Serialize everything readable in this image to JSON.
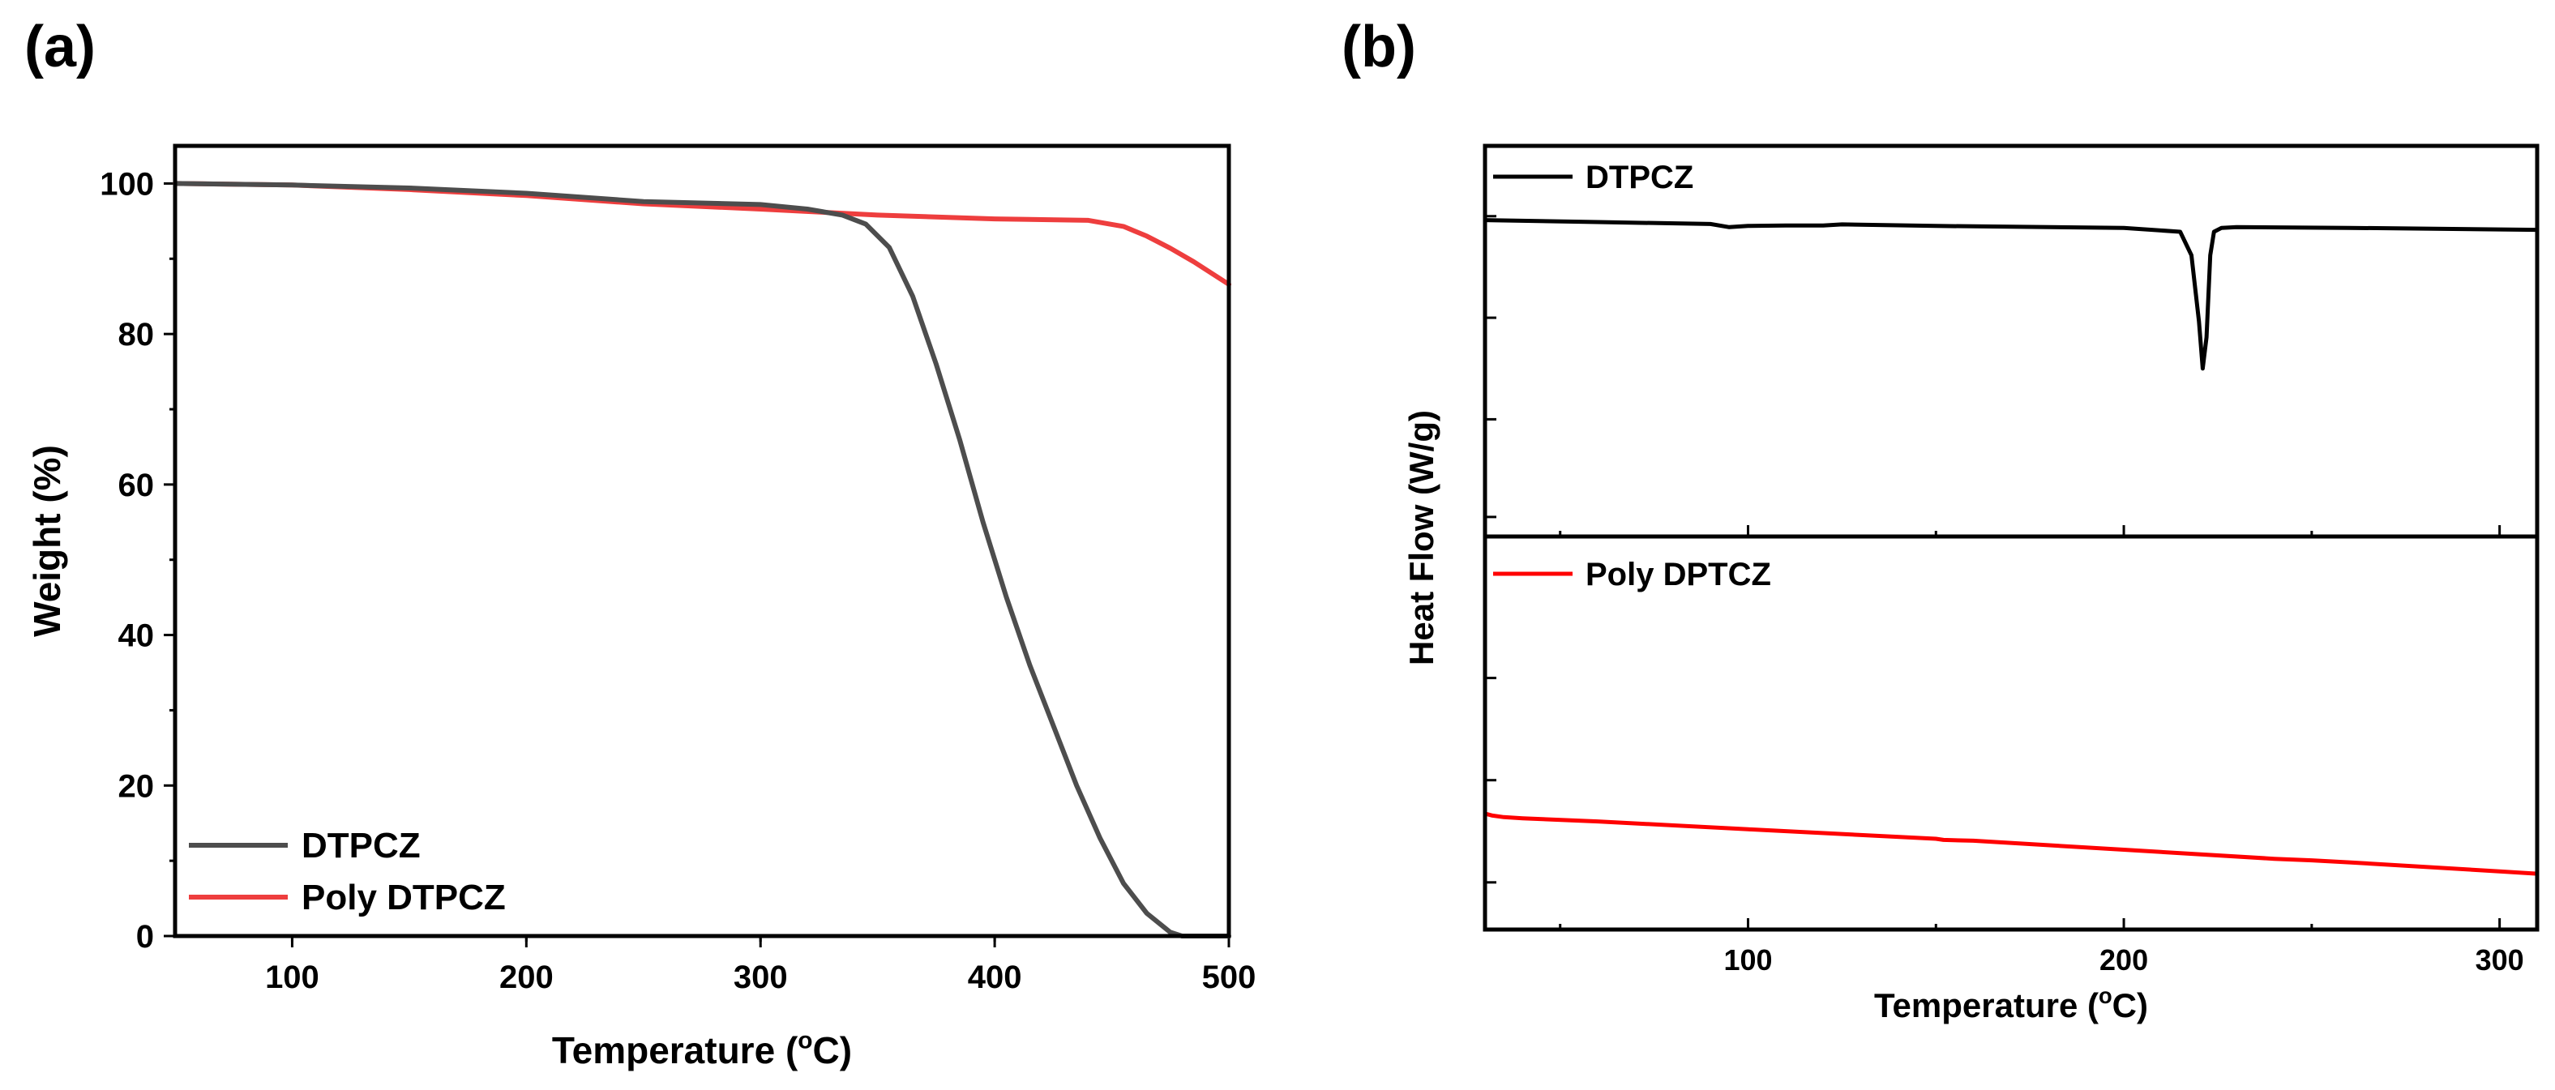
{
  "panels": {
    "a": {
      "label": "(a)"
    },
    "b": {
      "label": "(b)"
    }
  },
  "chart_data": [
    {
      "panel": "(a)",
      "type": "line",
      "title": "",
      "xlabel": "Temperature (°C)",
      "xlabel_parts": {
        "pre": "Temperature (",
        "sup": "o",
        "post": "C)"
      },
      "ylabel": "Weight (%)",
      "xlim": [
        50,
        500
      ],
      "ylim": [
        0,
        105
      ],
      "xticks": [
        100,
        200,
        300,
        400,
        500
      ],
      "yticks": [
        0,
        20,
        40,
        60,
        80,
        100
      ],
      "grid": false,
      "legend_position": "bottom-left",
      "series": [
        {
          "name": "DTPCZ",
          "color": "#4d4d4d",
          "x": [
            50,
            100,
            150,
            200,
            250,
            300,
            320,
            335,
            345,
            355,
            365,
            375,
            385,
            395,
            405,
            415,
            425,
            435,
            445,
            455,
            465,
            475,
            480,
            485,
            490,
            500
          ],
          "y": [
            100,
            99.8,
            99.4,
            98.7,
            97.6,
            97.2,
            96.6,
            95.8,
            94.6,
            91.5,
            85,
            76,
            66,
            55,
            45,
            36,
            28,
            20,
            13,
            7,
            3,
            0.5,
            0,
            0,
            0,
            0
          ]
        },
        {
          "name": "Poly DTPCZ",
          "color": "#ee3e3e",
          "x": [
            50,
            100,
            150,
            200,
            250,
            300,
            350,
            400,
            440,
            455,
            465,
            475,
            485,
            495,
            500
          ],
          "y": [
            100,
            99.8,
            99.2,
            98.4,
            97.3,
            96.6,
            95.8,
            95.3,
            95.1,
            94.3,
            93,
            91.4,
            89.6,
            87.6,
            86.6
          ]
        }
      ]
    },
    {
      "panel": "(b)",
      "type": "line",
      "title": "",
      "xlabel": "Temperature (°C)",
      "xlabel_parts": {
        "pre": "Temperature (",
        "sup": "o",
        "post": "C)"
      },
      "ylabel": "Heat Flow (W/g)",
      "xlim": [
        30,
        310
      ],
      "ylim": [
        0,
        1
      ],
      "xticks": [
        100,
        200,
        300
      ],
      "grid": false,
      "legend_position": "top-left",
      "series": [
        {
          "name": "DTPCZ",
          "color": "#000000",
          "x": [
            30,
            60,
            90,
            95,
            100,
            110,
            120,
            125,
            150,
            200,
            215,
            218,
            220,
            221,
            222,
            223,
            224,
            226,
            230,
            260,
            310
          ],
          "y": [
            0.81,
            0.805,
            0.8,
            0.792,
            0.795,
            0.796,
            0.796,
            0.799,
            0.795,
            0.79,
            0.78,
            0.72,
            0.55,
            0.43,
            0.51,
            0.72,
            0.78,
            0.79,
            0.792,
            0.79,
            0.785
          ]
        },
        {
          "name": "Poly DPTCZ",
          "color": "#ff0000",
          "x": [
            30,
            32,
            35,
            40,
            60,
            100,
            150,
            152,
            160,
            200,
            240,
            250,
            260,
            300,
            310
          ],
          "y": [
            0.295,
            0.29,
            0.286,
            0.283,
            0.275,
            0.255,
            0.231,
            0.228,
            0.226,
            0.203,
            0.18,
            0.176,
            0.171,
            0.148,
            0.142
          ]
        }
      ]
    }
  ]
}
